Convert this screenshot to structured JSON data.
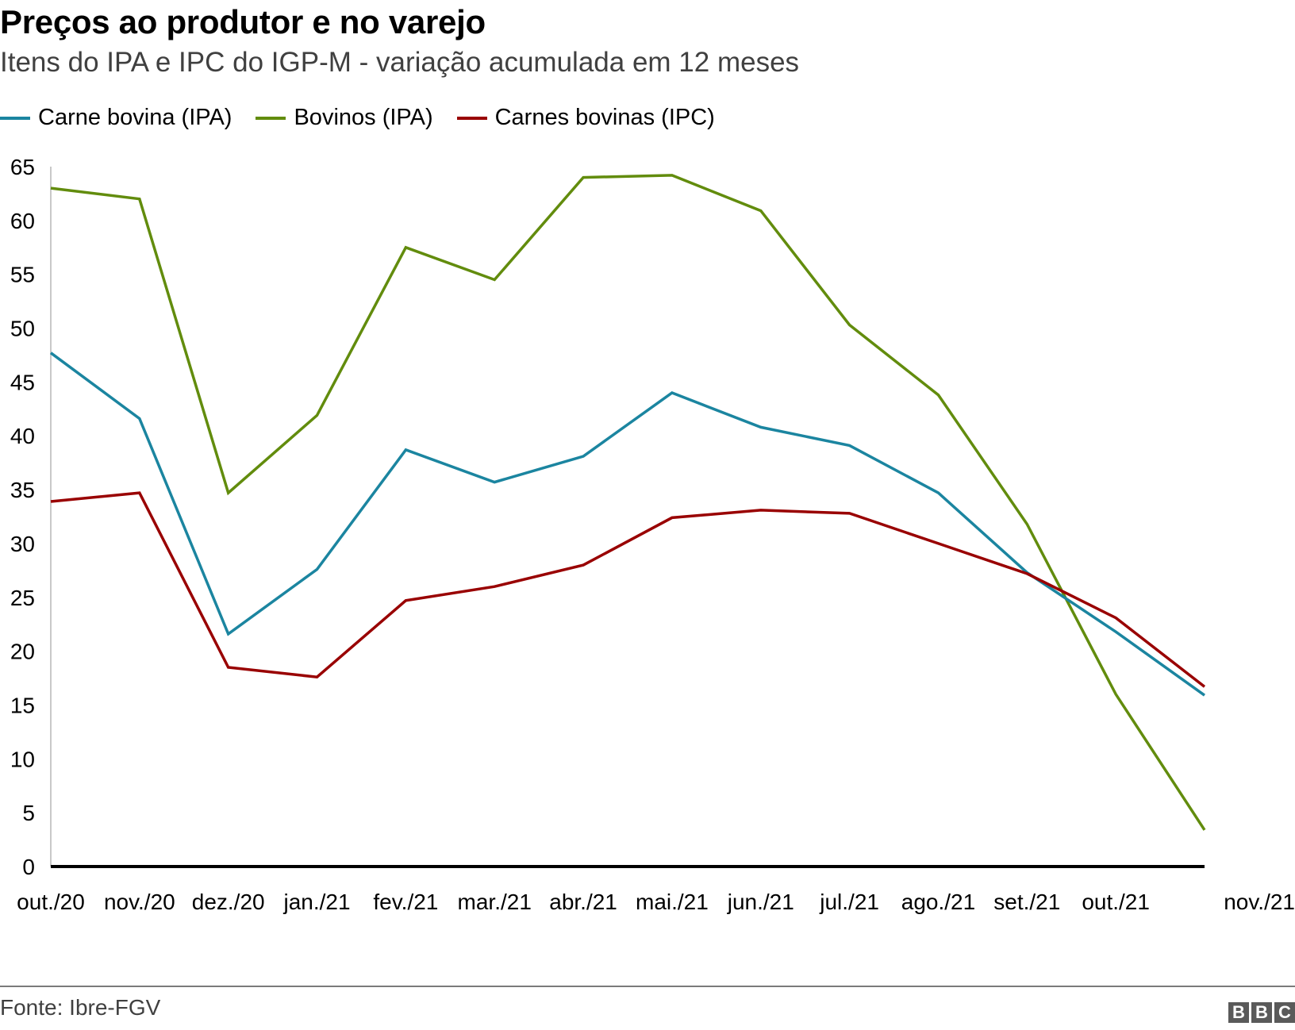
{
  "header": {
    "title": "Preços ao produtor e no varejo",
    "subtitle": "Itens do IPA e IPC do IGP-M - variação acumulada em 12 meses"
  },
  "legend": [
    {
      "label": "Carne bovina (IPA)",
      "color": "#1b85a0"
    },
    {
      "label": "Bovinos (IPA)",
      "color": "#628c0d"
    },
    {
      "label": "Carnes bovinas (IPC)",
      "color": "#990000"
    }
  ],
  "footer": {
    "source": "Fonte: Ibre-FGV",
    "logo_letters": [
      "B",
      "B",
      "C"
    ]
  },
  "chart_data": {
    "type": "line",
    "title": "Preços ao produtor e no varejo",
    "subtitle": "Itens do IPA e IPC do IGP-M - variação acumulada em 12 meses",
    "xlabel": "",
    "ylabel": "",
    "categories": [
      "out./20",
      "nov./20",
      "dez./20",
      "jan./21",
      "fev./21",
      "mar./21",
      "abr./21",
      "mai./21",
      "jun./21",
      "jul./21",
      "ago./21",
      "set./21",
      "out./21",
      "nov./21"
    ],
    "ylim": [
      0,
      65
    ],
    "yticks": [
      0,
      5,
      10,
      15,
      20,
      25,
      30,
      35,
      40,
      45,
      50,
      55,
      60,
      65
    ],
    "grid": false,
    "legend_position": "top-left",
    "series": [
      {
        "name": "Carne bovina (IPA)",
        "color": "#1b85a0",
        "values": [
          47.7,
          41.6,
          21.6,
          27.6,
          38.7,
          35.7,
          38.1,
          44.0,
          40.8,
          39.1,
          34.7,
          27.3,
          21.8,
          15.9
        ]
      },
      {
        "name": "Bovinos (IPA)",
        "color": "#628c0d",
        "values": [
          63.0,
          62.0,
          34.7,
          41.9,
          57.5,
          54.5,
          64.0,
          64.2,
          60.9,
          50.3,
          43.8,
          31.8,
          16.0,
          3.4
        ]
      },
      {
        "name": "Carnes bovinas (IPC)",
        "color": "#990000",
        "values": [
          33.9,
          34.7,
          18.5,
          17.6,
          24.7,
          26.0,
          28.0,
          32.4,
          33.1,
          32.8,
          30.0,
          27.2,
          23.1,
          16.7
        ]
      }
    ]
  }
}
